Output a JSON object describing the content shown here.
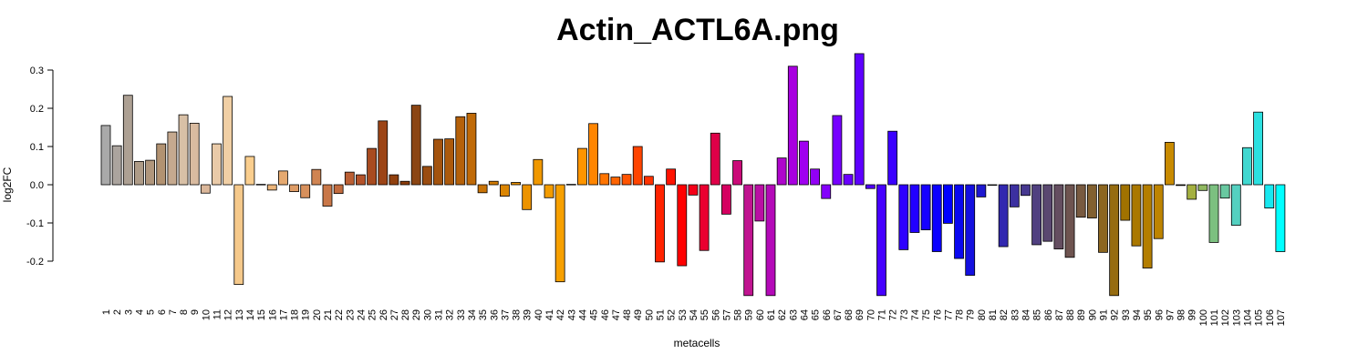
{
  "chart_data": {
    "type": "bar",
    "title": "Actin_ACTL6A.png",
    "xlabel": "metacells",
    "ylabel": "log2FC",
    "ylim": [
      -0.29,
      0.345
    ],
    "yticks": [
      -0.2,
      -0.1,
      0.0,
      0.1,
      0.2,
      0.3
    ],
    "ytick_labels": [
      "-0.2",
      "-0.1",
      "0.0",
      "0.1",
      "0.2",
      "0.3"
    ],
    "grid": false,
    "legend": "none",
    "categories": [
      "1",
      "2",
      "3",
      "4",
      "5",
      "6",
      "7",
      "8",
      "9",
      "10",
      "11",
      "12",
      "13",
      "14",
      "15",
      "16",
      "17",
      "18",
      "19",
      "20",
      "21",
      "22",
      "23",
      "24",
      "25",
      "26",
      "27",
      "28",
      "29",
      "30",
      "31",
      "32",
      "33",
      "34",
      "35",
      "36",
      "37",
      "38",
      "39",
      "40",
      "41",
      "42",
      "43",
      "44",
      "45",
      "46",
      "47",
      "48",
      "49",
      "50",
      "51",
      "52",
      "53",
      "54",
      "55",
      "56",
      "57",
      "58",
      "59",
      "60",
      "61",
      "62",
      "63",
      "64",
      "65",
      "66",
      "67",
      "68",
      "69",
      "70",
      "71",
      "72",
      "73",
      "74",
      "75",
      "76",
      "77",
      "78",
      "79",
      "80",
      "81",
      "82",
      "83",
      "84",
      "85",
      "86",
      "87",
      "88",
      "89",
      "90",
      "91",
      "92",
      "93",
      "94",
      "95",
      "96",
      "97",
      "98",
      "99",
      "100",
      "101",
      "102",
      "103",
      "104",
      "105",
      "106",
      "107"
    ],
    "values": [
      0.155,
      0.102,
      0.234,
      0.061,
      0.064,
      0.107,
      0.138,
      0.183,
      0.161,
      -0.022,
      0.107,
      0.231,
      -0.261,
      0.074,
      0.001,
      -0.014,
      0.036,
      -0.018,
      -0.034,
      0.04,
      -0.056,
      -0.023,
      0.033,
      0.026,
      0.095,
      0.167,
      0.026,
      0.009,
      0.208,
      0.048,
      0.119,
      0.12,
      0.178,
      0.187,
      -0.021,
      0.009,
      -0.03,
      0.006,
      -0.065,
      0.066,
      -0.034,
      -0.254,
      0.001,
      0.095,
      0.16,
      0.029,
      0.02,
      0.027,
      0.1,
      0.022,
      -0.202,
      0.041,
      -0.212,
      -0.027,
      -0.172,
      0.135,
      -0.077,
      0.063,
      -0.29,
      -0.095,
      -0.29,
      0.07,
      0.31,
      0.114,
      0.041,
      -0.036,
      0.181,
      0.027,
      0.343,
      -0.01,
      -0.29,
      0.14,
      -0.17,
      -0.125,
      -0.118,
      -0.175,
      -0.101,
      -0.193,
      -0.237,
      -0.032,
      0.0,
      -0.162,
      -0.058,
      -0.028,
      -0.157,
      -0.148,
      -0.168,
      -0.19,
      -0.085,
      -0.087,
      -0.177,
      -0.29,
      -0.093,
      -0.16,
      -0.218,
      -0.141,
      0.111,
      -0.002,
      -0.038,
      -0.015,
      -0.151,
      -0.035,
      -0.106,
      0.097,
      0.19,
      -0.061,
      -0.175
    ],
    "colors": [
      "#A9A9A9",
      "#ABA49E",
      "#ADA093",
      "#AE9B87",
      "#B0967C",
      "#B29271",
      "#C5A98F",
      "#D8C0A6",
      "#D9BBA0",
      "#DBB79A",
      "#E9CAA8",
      "#F0CFA5",
      "#F5C98B",
      "#FACE8E",
      "#F3C284",
      "#ECB57A",
      "#E5A970",
      "#DE9C66",
      "#D7905C",
      "#D08452",
      "#C97748",
      "#C26B3E",
      "#BB5F34",
      "#B4522A",
      "#A84B20",
      "#9C4416",
      "#90400E",
      "#8B3C0A",
      "#8B4513",
      "#9A4C10",
      "#A3530E",
      "#AC5A0C",
      "#B5610A",
      "#C06A08",
      "#C97306",
      "#D27C04",
      "#DB8502",
      "#E48E00",
      "#EC9300",
      "#F09800",
      "#F39C00",
      "#F7A000",
      "#FFA500",
      "#FF9500",
      "#FF8500",
      "#FF7400",
      "#FF6400",
      "#FF5400",
      "#FF4400",
      "#FF3300",
      "#FF2300",
      "#FF1300",
      "#FF0000",
      "#F40018",
      "#EA0030",
      "#DF0048",
      "#D50060",
      "#CA0A78",
      "#C01490",
      "#BA0FA4",
      "#B40AB8",
      "#AE05CC",
      "#A800E0",
      "#A000F0",
      "#9200F5",
      "#8400FA",
      "#7600FF",
      "#6A00FF",
      "#5E00FF",
      "#5200FF",
      "#4600FF",
      "#3A00FF",
      "#2E00FF",
      "#2200FF",
      "#1600FF",
      "#0A00FF",
      "#0000FF",
      "#0A08F0",
      "#1410E0",
      "#1E18D0",
      "#2820C0",
      "#3228B0",
      "#3C30A0",
      "#463890",
      "#504080",
      "#5A4870",
      "#644E60",
      "#6E5450",
      "#785A40",
      "#826030",
      "#8C6620",
      "#966C10",
      "#A07200",
      "#AA7800",
      "#B47E00",
      "#BE8400",
      "#C88A00",
      "#B8A020",
      "#A4B040",
      "#90B860",
      "#7CC080",
      "#68C8A0",
      "#54D0C0",
      "#40D8D0",
      "#2CE0E0",
      "#18E8F0",
      "#00FFFF"
    ]
  }
}
